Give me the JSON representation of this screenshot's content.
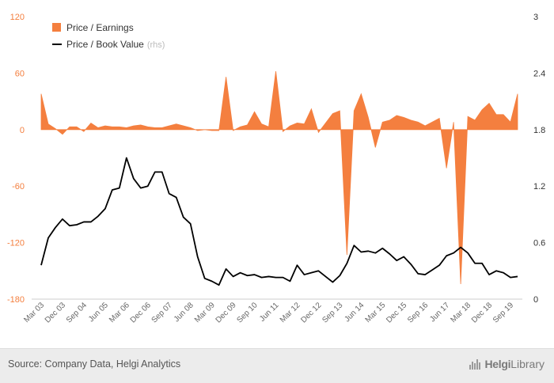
{
  "chart_data": {
    "type": "area+line",
    "series": [
      {
        "name": "Price / Earnings",
        "type": "area",
        "axis": "left",
        "color": "#f47f3f",
        "values": [
          38,
          6,
          1,
          -5,
          3,
          3,
          -2,
          7,
          2,
          4,
          3,
          3,
          2,
          4,
          5,
          3,
          2,
          2,
          4,
          6,
          4,
          2,
          -1,
          0,
          -1,
          -1,
          56,
          -1,
          3,
          5,
          19,
          6,
          3,
          62,
          -2,
          4,
          7,
          6,
          22,
          -3,
          7,
          17,
          20,
          -133,
          20,
          38,
          13,
          -19,
          8,
          10,
          15,
          13,
          10,
          8,
          4,
          8,
          12,
          -41,
          8,
          -164,
          14,
          10,
          21,
          28,
          16,
          16,
          8,
          38
        ]
      },
      {
        "name": "Price / Book Value",
        "note": "(rhs)",
        "type": "line",
        "axis": "right",
        "color": "#000000",
        "values": [
          0.36,
          0.65,
          0.76,
          0.85,
          0.78,
          0.79,
          0.82,
          0.82,
          0.88,
          0.96,
          1.16,
          1.18,
          1.5,
          1.28,
          1.18,
          1.2,
          1.35,
          1.35,
          1.12,
          1.08,
          0.87,
          0.8,
          0.45,
          0.22,
          0.19,
          0.15,
          0.32,
          0.24,
          0.28,
          0.25,
          0.26,
          0.23,
          0.24,
          0.23,
          0.23,
          0.19,
          0.36,
          0.26,
          0.28,
          0.3,
          0.24,
          0.18,
          0.25,
          0.38,
          0.57,
          0.5,
          0.51,
          0.49,
          0.54,
          0.48,
          0.41,
          0.45,
          0.37,
          0.27,
          0.26,
          0.31,
          0.36,
          0.46,
          0.49,
          0.55,
          0.49,
          0.38,
          0.38,
          0.26,
          0.3,
          0.28,
          0.23,
          0.24
        ]
      }
    ],
    "x_tick_labels": [
      "Mar 03",
      "Dec 03",
      "Sep 04",
      "Jun 05",
      "Mar 06",
      "Dec 06",
      "Sep 07",
      "Jun 08",
      "Mar 09",
      "Dec 09",
      "Sep 10",
      "Jun 11",
      "Mar 12",
      "Dec 12",
      "Sep 13",
      "Jun 14",
      "Mar 15",
      "Dec 15",
      "Sep 16",
      "Jun 17",
      "Mar 18",
      "Dec 18",
      "Sep 19"
    ],
    "y_left": {
      "ticks": [
        "120",
        "60",
        "0",
        "-60",
        "-120",
        "-180"
      ],
      "min": -180,
      "max": 120
    },
    "y_right": {
      "ticks": [
        "3",
        "2.4",
        "1.8",
        "1.2",
        "0.6",
        "0"
      ],
      "min": 0,
      "max": 3
    },
    "legend_position": "top-left",
    "grid": false
  },
  "footer": {
    "source": "Source: Company Data, Helgi Analytics",
    "brand_name": "Helgi",
    "brand_suffix": "Library"
  }
}
